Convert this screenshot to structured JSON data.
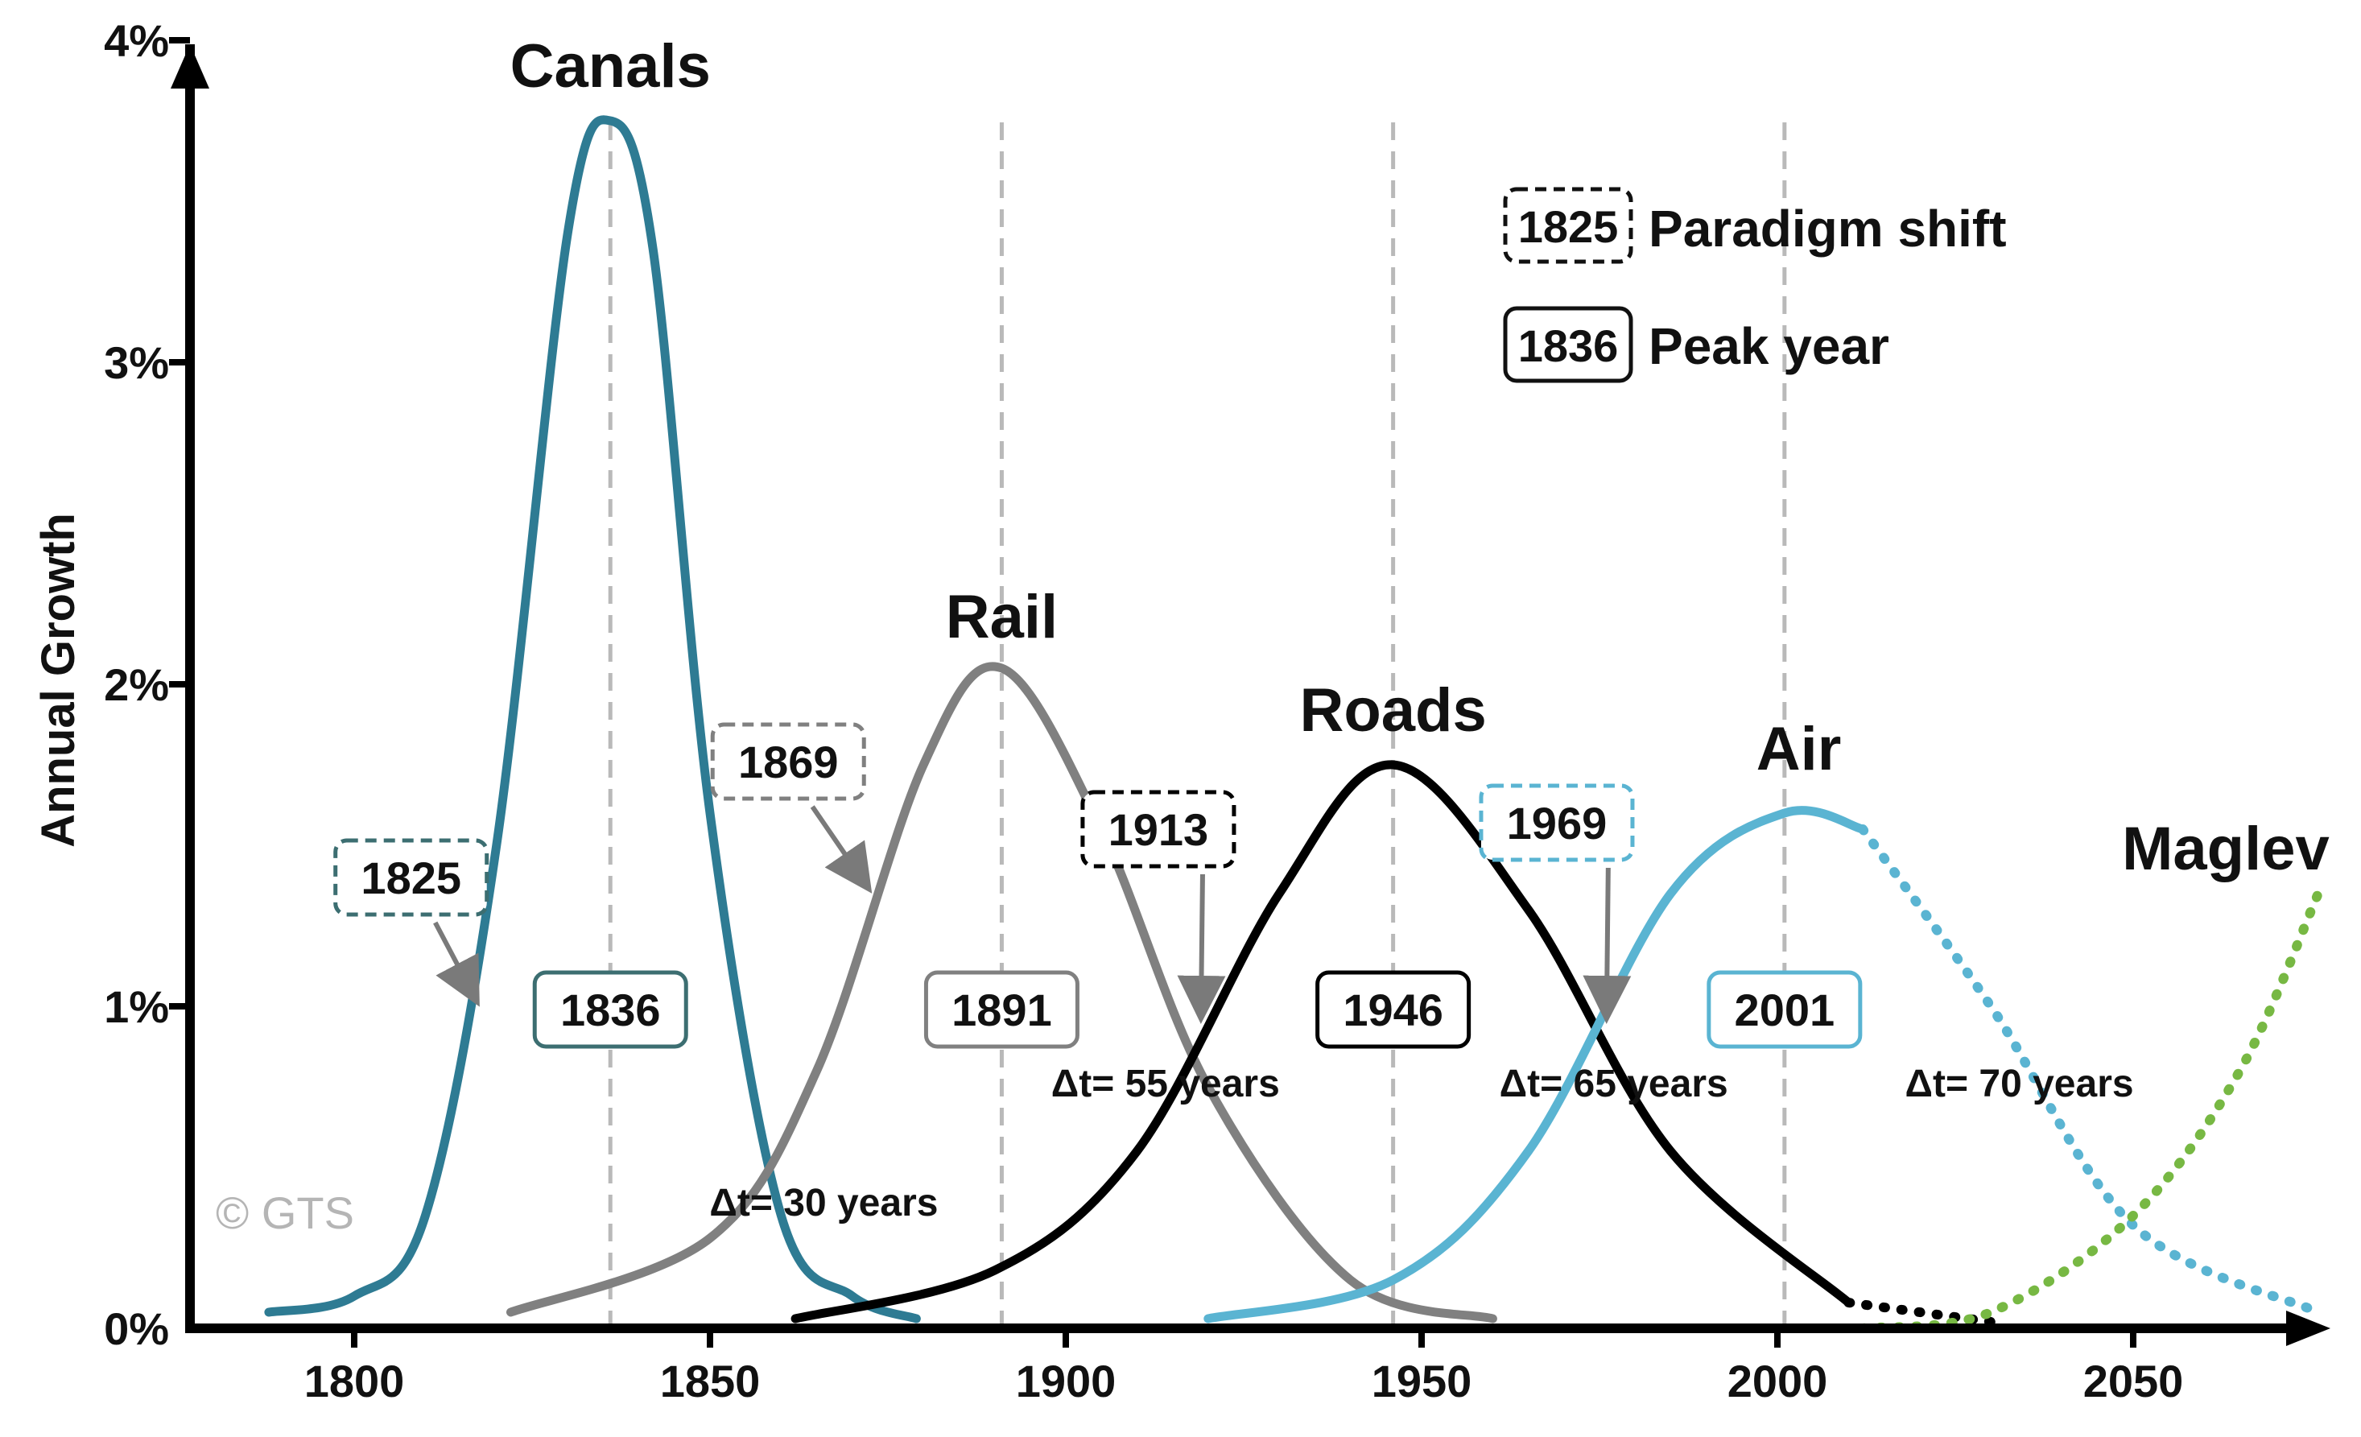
{
  "chart_data": {
    "type": "line",
    "ylabel": "Annual Growth",
    "xlabel": "",
    "xlim": [
      1780,
      2080
    ],
    "ylim": [
      0,
      4
    ],
    "x_ticks": [
      1800,
      1850,
      1900,
      1950,
      2000,
      2050
    ],
    "y_ticks": [
      0,
      1,
      2,
      3,
      4
    ],
    "y_tick_labels": [
      "0%",
      "1%",
      "2%",
      "3%",
      "4%"
    ],
    "grid": false,
    "legend_position": "top-right",
    "series": [
      {
        "name": "Canals",
        "color": "#2e7b93",
        "style": "solid",
        "peak_year": 1836,
        "peak_value": 3.75,
        "start": 1788,
        "end": 1879,
        "sigma_left": 12,
        "sigma_right": 12,
        "points": [
          [
            1788,
            0.05
          ],
          [
            1800,
            0.1
          ],
          [
            1810,
            0.35
          ],
          [
            1820,
            1.5
          ],
          [
            1830,
            3.4
          ],
          [
            1836,
            3.75
          ],
          [
            1842,
            3.35
          ],
          [
            1850,
            1.6
          ],
          [
            1860,
            0.35
          ],
          [
            1870,
            0.1
          ],
          [
            1879,
            0.03
          ]
        ]
      },
      {
        "name": "Rail",
        "color": "#808080",
        "style": "solid",
        "peak_year": 1891,
        "peak_value": 2.05,
        "start": 1822,
        "end": 1960,
        "sigma_left": 20,
        "sigma_right": 20,
        "points": [
          [
            1822,
            0.05
          ],
          [
            1850,
            0.28
          ],
          [
            1865,
            0.8
          ],
          [
            1880,
            1.75
          ],
          [
            1891,
            2.05
          ],
          [
            1905,
            1.55
          ],
          [
            1920,
            0.75
          ],
          [
            1940,
            0.15
          ],
          [
            1960,
            0.03
          ]
        ]
      },
      {
        "name": "Roads",
        "color": "#000000",
        "style": "solid",
        "peak_year": 1946,
        "peak_value": 1.75,
        "start": 1862,
        "end": 2010,
        "sigma_left": 23,
        "sigma_right": 27,
        "points": [
          [
            1862,
            0.03
          ],
          [
            1890,
            0.18
          ],
          [
            1910,
            0.55
          ],
          [
            1930,
            1.35
          ],
          [
            1946,
            1.75
          ],
          [
            1965,
            1.3
          ],
          [
            1985,
            0.55
          ],
          [
            2010,
            0.08
          ]
        ]
      },
      {
        "name": "Air",
        "color": "#5ab4d2",
        "style": "solid",
        "peak_year": 2001,
        "peak_value": 1.6,
        "start": 1920,
        "end": 2012,
        "sigma_left": 24,
        "sigma_right": 26,
        "points": [
          [
            1920,
            0.03
          ],
          [
            1946,
            0.15
          ],
          [
            1965,
            0.55
          ],
          [
            1985,
            1.35
          ],
          [
            2001,
            1.6
          ],
          [
            2012,
            1.55
          ]
        ]
      },
      {
        "name": "Air (projected)",
        "color": "#5ab4d2",
        "style": "dotted",
        "start": 2012,
        "end": 2076,
        "points": [
          [
            2012,
            1.55
          ],
          [
            2030,
            1.0
          ],
          [
            2050,
            0.32
          ],
          [
            2076,
            0.05
          ]
        ]
      },
      {
        "name": "Roads (projected)",
        "color": "#000000",
        "style": "dotted",
        "start": 2010,
        "end": 2030,
        "points": [
          [
            2010,
            0.08
          ],
          [
            2030,
            0.02
          ]
        ]
      },
      {
        "name": "Maglev",
        "color": "#77b843",
        "style": "dotted",
        "start": 2012,
        "end": 2076,
        "points": [
          [
            2012,
            0.0
          ],
          [
            2030,
            0.05
          ],
          [
            2050,
            0.35
          ],
          [
            2065,
            0.8
          ],
          [
            2076,
            1.35
          ]
        ]
      }
    ],
    "series_labels": [
      {
        "text": "Canals",
        "x": 1836,
        "y": 3.78
      },
      {
        "text": "Rail",
        "x": 1891,
        "y": 2.07
      },
      {
        "text": "Roads",
        "x": 1946,
        "y": 1.78
      },
      {
        "text": "Air",
        "x": 2003,
        "y": 1.66
      },
      {
        "text": "Maglev",
        "x": 2063,
        "y": 1.35
      }
    ],
    "paradigm_shifts": [
      {
        "year": "1825",
        "color": "#3c6e71",
        "box_x": 1808,
        "box_y": 1.4,
        "arrow_to": [
          1817,
          1.0
        ]
      },
      {
        "year": "1869",
        "color": "#808080",
        "box_x": 1861,
        "box_y": 1.76,
        "arrow_to": [
          1872,
          1.35
        ]
      },
      {
        "year": "1913",
        "color": "#000000",
        "box_x": 1913,
        "box_y": 1.55,
        "arrow_to": [
          1919,
          0.95
        ]
      },
      {
        "year": "1969",
        "color": "#5ab4d2",
        "box_x": 1969,
        "box_y": 1.57,
        "arrow_to": [
          1976,
          0.95
        ]
      }
    ],
    "peak_years": [
      {
        "year": "1836",
        "color": "#3c6e71",
        "x": 1836,
        "y": 1.0
      },
      {
        "year": "1891",
        "color": "#808080",
        "x": 1891,
        "y": 1.0
      },
      {
        "year": "1946",
        "color": "#000000",
        "x": 1946,
        "y": 1.0
      },
      {
        "year": "2001",
        "color": "#5ab4d2",
        "x": 2001,
        "y": 1.0
      }
    ],
    "delta_labels": [
      {
        "text": "Δt= 30 years",
        "x": 1866,
        "y": 0.35
      },
      {
        "text": "Δt= 55 years",
        "x": 1914,
        "y": 0.72
      },
      {
        "text": "Δt= 65 years",
        "x": 1977,
        "y": 0.72
      },
      {
        "text": "Δt= 70 years",
        "x": 2034,
        "y": 0.72
      }
    ],
    "peak_guides": [
      1836,
      1891,
      1946,
      2001
    ],
    "legend": [
      {
        "sample": "1825",
        "label": "Paradigm shift",
        "style": "dashed"
      },
      {
        "sample": "1836",
        "label": "Peak year",
        "style": "solid"
      }
    ],
    "watermark": "© GTS"
  }
}
